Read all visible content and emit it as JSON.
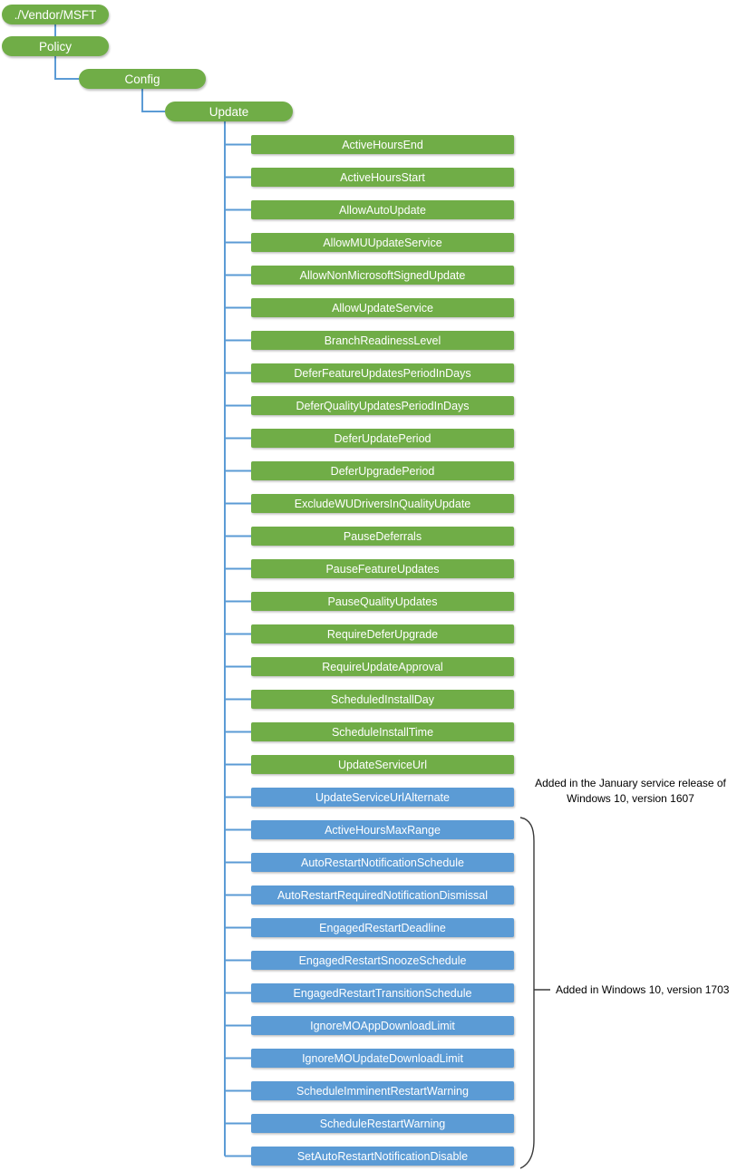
{
  "diagram": {
    "path_nodes": [
      {
        "label": "./Vendor/MSFT"
      },
      {
        "label": "Policy"
      },
      {
        "label": "Config"
      },
      {
        "label": "Update"
      }
    ],
    "policy_nodes": [
      {
        "label": "ActiveHoursEnd",
        "group": "base"
      },
      {
        "label": "ActiveHoursStart",
        "group": "base"
      },
      {
        "label": "AllowAutoUpdate",
        "group": "base"
      },
      {
        "label": "AllowMUUpdateService",
        "group": "base"
      },
      {
        "label": "AllowNonMicrosoftSignedUpdate",
        "group": "base"
      },
      {
        "label": "AllowUpdateService",
        "group": "base"
      },
      {
        "label": "BranchReadinessLevel",
        "group": "base"
      },
      {
        "label": "DeferFeatureUpdatesPeriodInDays",
        "group": "base"
      },
      {
        "label": "DeferQualityUpdatesPeriodInDays",
        "group": "base"
      },
      {
        "label": "DeferUpdatePeriod",
        "group": "base"
      },
      {
        "label": "DeferUpgradePeriod",
        "group": "base"
      },
      {
        "label": "ExcludeWUDriversInQualityUpdate",
        "group": "base"
      },
      {
        "label": "PauseDeferrals",
        "group": "base"
      },
      {
        "label": "PauseFeatureUpdates",
        "group": "base"
      },
      {
        "label": "PauseQualityUpdates",
        "group": "base"
      },
      {
        "label": "RequireDeferUpgrade",
        "group": "base"
      },
      {
        "label": "RequireUpdateApproval",
        "group": "base"
      },
      {
        "label": "ScheduledInstallDay",
        "group": "base"
      },
      {
        "label": "ScheduleInstallTime",
        "group": "base"
      },
      {
        "label": "UpdateServiceUrl",
        "group": "base"
      },
      {
        "label": "UpdateServiceUrlAlternate",
        "group": "jan-service-release-1607"
      },
      {
        "label": "ActiveHoursMaxRange",
        "group": "version-1703"
      },
      {
        "label": "AutoRestartNotificationSchedule",
        "group": "version-1703"
      },
      {
        "label": "AutoRestartRequiredNotificationDismissal",
        "group": "version-1703"
      },
      {
        "label": "EngagedRestartDeadline",
        "group": "version-1703"
      },
      {
        "label": "EngagedRestartSnoozeSchedule",
        "group": "version-1703"
      },
      {
        "label": "EngagedRestartTransitionSchedule",
        "group": "version-1703"
      },
      {
        "label": "IgnoreMOAppDownloadLimit",
        "group": "version-1703"
      },
      {
        "label": "IgnoreMOUpdateDownloadLimit",
        "group": "version-1703"
      },
      {
        "label": "ScheduleImminentRestartWarning",
        "group": "version-1703"
      },
      {
        "label": "ScheduleRestartWarning",
        "group": "version-1703"
      },
      {
        "label": "SetAutoRestartNotificationDisable",
        "group": "version-1703"
      }
    ],
    "annotations": [
      {
        "line1": "Added in the January service release of",
        "line2": "Windows 10, version 1607"
      },
      {
        "text": "Added in Windows 10, version 1703"
      }
    ],
    "colors": {
      "base_node_fill": "#70AD47",
      "added_node_fill": "#5B9BD5",
      "connector": "#5B9BD5",
      "node_text": "#FFFFFF",
      "annotation_text": "#000000",
      "brace": "#3A3A3A"
    }
  }
}
